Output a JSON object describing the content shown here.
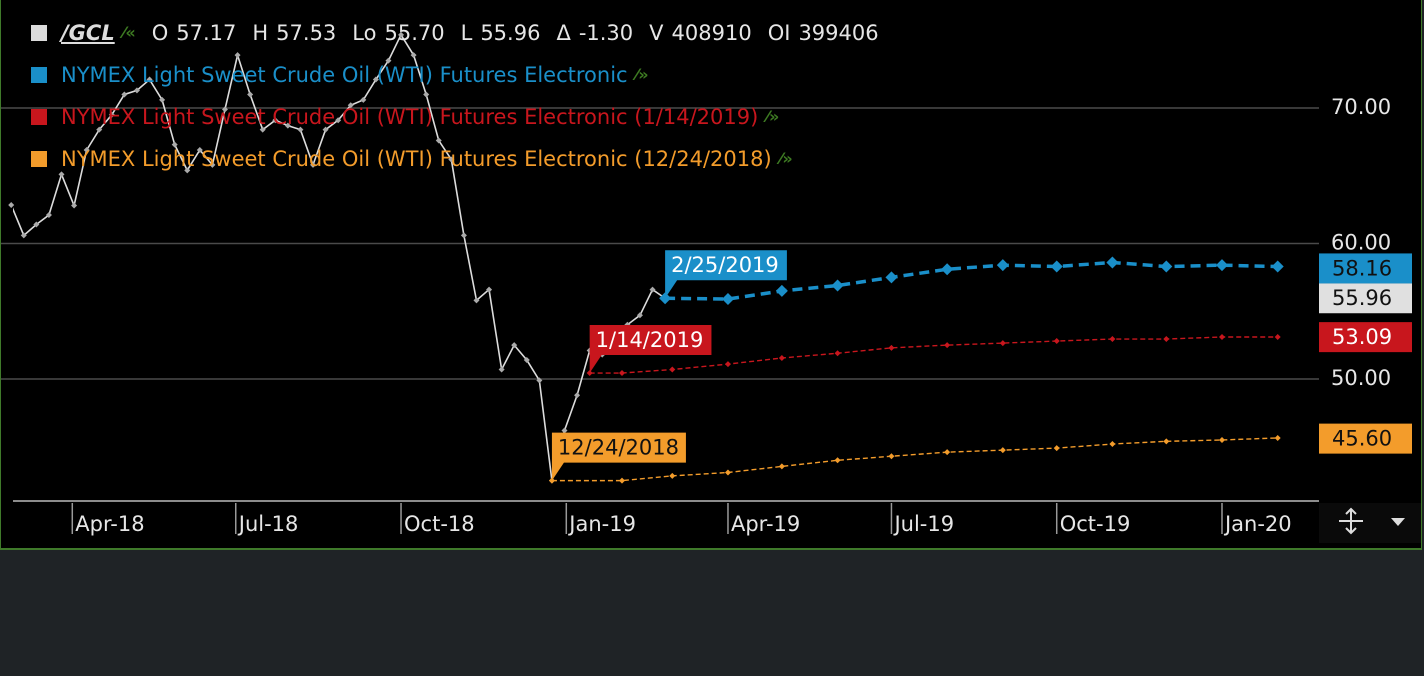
{
  "chart_data": {
    "type": "line",
    "quote": {
      "symbol": "/GCL",
      "fields": [
        {
          "label": "O",
          "value": "57.17"
        },
        {
          "label": "H",
          "value": "57.53"
        },
        {
          "label": "Lo",
          "value": "55.70"
        },
        {
          "label": "L",
          "value": "55.96"
        },
        {
          "label": "Δ",
          "value": "-1.30"
        },
        {
          "label": "V",
          "value": "408910"
        },
        {
          "label": "OI",
          "value": "399406"
        }
      ]
    },
    "xlim": [
      "2018-02-27",
      "2020-02-24"
    ],
    "ylim": [
      41.07,
      77.97
    ],
    "grid": true,
    "xticks": [
      {
        "value": "2018-04-01",
        "label": "Apr-18"
      },
      {
        "value": "2018-07-01",
        "label": "Jul-18"
      },
      {
        "value": "2018-10-01",
        "label": "Oct-18"
      },
      {
        "value": "2019-01-01",
        "label": "Jan-19"
      },
      {
        "value": "2019-04-01",
        "label": "Apr-19"
      },
      {
        "value": "2019-07-01",
        "label": "Jul-19"
      },
      {
        "value": "2019-10-01",
        "label": "Oct-19"
      },
      {
        "value": "2020-01-01",
        "label": "Jan-20"
      }
    ],
    "yticks": [
      {
        "value": 50,
        "label": "50.00"
      },
      {
        "value": 60,
        "label": "60.00"
      },
      {
        "value": 70,
        "label": "70.00"
      }
    ],
    "series": [
      {
        "name": "/GCL",
        "color": "#dcdcdc",
        "style": "solid",
        "x": [
          "2018-02-26",
          "2018-03-05",
          "2018-03-12",
          "2018-03-19",
          "2018-03-26",
          "2018-04-02",
          "2018-04-09",
          "2018-04-16",
          "2018-04-23",
          "2018-04-30",
          "2018-05-07",
          "2018-05-14",
          "2018-05-21",
          "2018-05-28",
          "2018-06-04",
          "2018-06-11",
          "2018-06-18",
          "2018-06-25",
          "2018-07-02",
          "2018-07-09",
          "2018-07-16",
          "2018-07-23",
          "2018-07-30",
          "2018-08-06",
          "2018-08-13",
          "2018-08-20",
          "2018-08-27",
          "2018-09-03",
          "2018-09-10",
          "2018-09-17",
          "2018-09-24",
          "2018-10-01",
          "2018-10-08",
          "2018-10-15",
          "2018-10-22",
          "2018-10-29",
          "2018-11-05",
          "2018-11-12",
          "2018-11-19",
          "2018-11-26",
          "2018-12-03",
          "2018-12-10",
          "2018-12-17",
          "2018-12-24",
          "2018-12-31",
          "2019-01-07",
          "2019-01-14",
          "2019-01-21",
          "2019-01-28",
          "2019-02-04",
          "2019-02-11",
          "2019-02-18",
          "2019-02-25"
        ],
        "values": [
          62.84,
          60.6,
          61.4,
          62.1,
          65.1,
          62.8,
          66.9,
          68.4,
          69.5,
          71.0,
          71.3,
          72.1,
          70.6,
          67.3,
          65.4,
          66.9,
          65.8,
          69.9,
          73.9,
          71.0,
          68.4,
          69.1,
          68.7,
          68.4,
          65.8,
          68.4,
          69.1,
          70.2,
          70.6,
          72.1,
          73.5,
          75.4,
          73.9,
          71.0,
          67.6,
          66.2,
          60.6,
          55.8,
          56.6,
          50.7,
          52.5,
          51.4,
          49.9,
          42.5,
          46.2,
          48.8,
          52.1,
          51.8,
          52.9,
          54.0,
          54.7,
          56.6,
          55.96
        ],
        "last_price": {
          "value": 55.96,
          "label": "55.96"
        }
      },
      {
        "name": "NYMEX Light Sweet Crude Oil (WTI) Futures Electronic",
        "color": "#1a8fc9",
        "style": "thick-dashed",
        "start_label": "2/25/2019",
        "x": [
          "2019-02-25",
          "2019-04-01",
          "2019-05-01",
          "2019-06-01",
          "2019-07-01",
          "2019-08-01",
          "2019-09-01",
          "2019-10-01",
          "2019-11-01",
          "2019-12-01",
          "2020-01-01",
          "2020-02-01"
        ],
        "values": [
          55.96,
          55.9,
          56.5,
          56.9,
          57.5,
          58.1,
          58.4,
          58.3,
          58.6,
          58.3,
          58.4,
          58.3
        ],
        "last_price": {
          "value": 58.16,
          "label": "58.16"
        }
      },
      {
        "name": "NYMEX Light Sweet Crude Oil (WTI) Futures Electronic (1/14/2019)",
        "color": "#c8161d",
        "style": "dashed",
        "start_label": "1/14/2019",
        "x": [
          "2019-01-14",
          "2019-02-01",
          "2019-03-01",
          "2019-04-01",
          "2019-05-01",
          "2019-06-01",
          "2019-07-01",
          "2019-08-01",
          "2019-09-01",
          "2019-10-01",
          "2019-11-01",
          "2019-12-01",
          "2020-01-01",
          "2020-02-01"
        ],
        "values": [
          50.44,
          50.44,
          50.7,
          51.1,
          51.55,
          51.9,
          52.3,
          52.5,
          52.65,
          52.8,
          52.95,
          52.95,
          53.1,
          53.1
        ],
        "last_price": {
          "value": 53.09,
          "label": "53.09"
        }
      },
      {
        "name": "NYMEX Light Sweet Crude Oil (WTI) Futures Electronic (12/24/2018)",
        "color": "#f39c2b",
        "style": "dashed",
        "start_label": "12/24/2018",
        "x": [
          "2018-12-24",
          "2019-02-01",
          "2019-03-01",
          "2019-04-01",
          "2019-05-01",
          "2019-06-01",
          "2019-07-01",
          "2019-08-01",
          "2019-09-01",
          "2019-10-01",
          "2019-11-01",
          "2019-12-01",
          "2020-01-01",
          "2020-02-01"
        ],
        "values": [
          42.5,
          42.5,
          42.85,
          43.1,
          43.55,
          44.0,
          44.3,
          44.6,
          44.75,
          44.9,
          45.2,
          45.4,
          45.5,
          45.65
        ],
        "last_price": {
          "value": 45.6,
          "label": "45.60"
        }
      }
    ]
  }
}
